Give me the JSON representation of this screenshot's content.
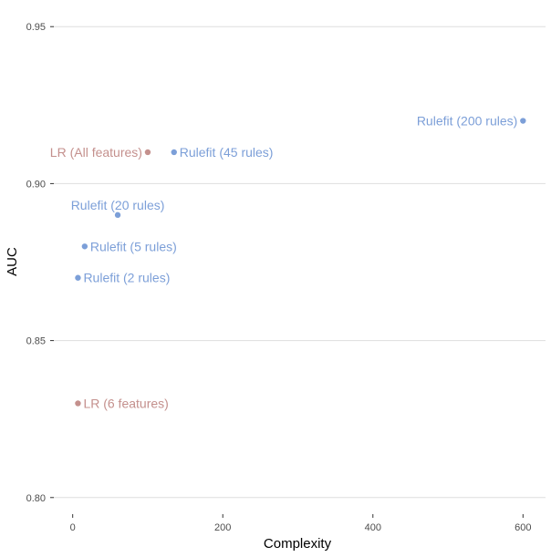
{
  "chart_data": {
    "type": "scatter",
    "title": "",
    "xlabel": "Complexity",
    "ylabel": "AUC",
    "xlim": [
      -30,
      630
    ],
    "ylim": [
      0.795,
      0.955
    ],
    "x_ticks": [
      0,
      200,
      400,
      600
    ],
    "x_tick_labels": [
      "0",
      "200",
      "400",
      "600"
    ],
    "y_ticks": [
      0.8,
      0.85,
      0.9,
      0.95
    ],
    "y_tick_labels": [
      "0.80",
      "0.85",
      "0.90",
      "0.95"
    ],
    "grid": "horizontal major lines",
    "legend": "none",
    "colors": {
      "lr": "#c4908d",
      "rulefit": "#7c9fd8",
      "grid": "#dedede"
    },
    "points": [
      {
        "label": "Rulefit (200 rules)",
        "group": "rulefit",
        "x": 600,
        "y": 0.92,
        "label_side": "left"
      },
      {
        "label": "LR (All features)",
        "group": "lr",
        "x": 100,
        "y": 0.91,
        "label_side": "left"
      },
      {
        "label": "Rulefit (45 rules)",
        "group": "rulefit",
        "x": 135,
        "y": 0.91,
        "label_side": "right"
      },
      {
        "label": "Rulefit (20 rules)",
        "group": "rulefit",
        "x": 60,
        "y": 0.89,
        "label_side": "above"
      },
      {
        "label": "Rulefit (5 rules)",
        "group": "rulefit",
        "x": 16,
        "y": 0.88,
        "label_side": "right"
      },
      {
        "label": "Rulefit (2 rules)",
        "group": "rulefit",
        "x": 7,
        "y": 0.87,
        "label_side": "right"
      },
      {
        "label": "LR (6 features)",
        "group": "lr",
        "x": 7,
        "y": 0.83,
        "label_side": "right"
      }
    ]
  }
}
